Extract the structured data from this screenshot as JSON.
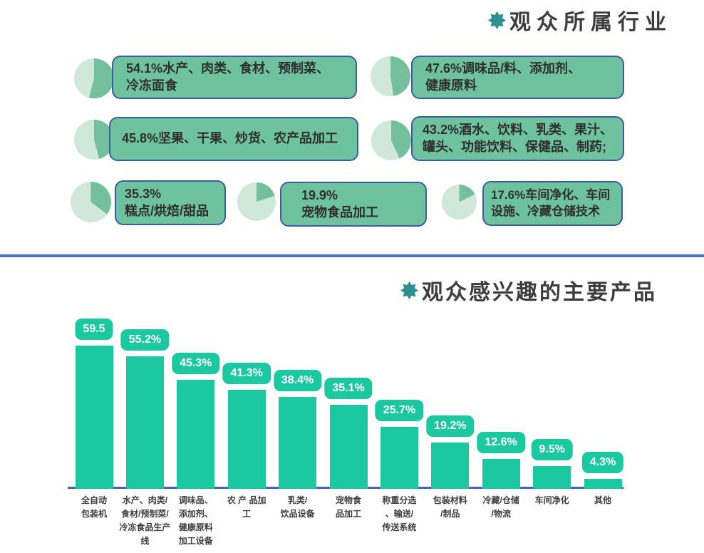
{
  "industries": {
    "title": "观众所属行业",
    "items": [
      {
        "percent": 54.1,
        "text": "54.1%水产、肉类、食材、预制菜、\n冷冻面食"
      },
      {
        "percent": 47.6,
        "text": "47.6%调味品/料、添加剂、\n健康原料"
      },
      {
        "percent": 45.8,
        "text": "45.8%坚果、干果、炒货、农产品加工"
      },
      {
        "percent": 43.2,
        "text": "43.2%酒水、饮料、乳类、果汁、\n罐头、功能饮料、保健品、制药;"
      },
      {
        "percent": 35.3,
        "text": "35.3%\n糕点/烘焙/甜品"
      },
      {
        "percent": 19.9,
        "text": "19.9%\n宠物食品加工"
      },
      {
        "percent": 17.6,
        "text": "17.6%车间净化、车间\n设施、冷藏仓储技术"
      }
    ]
  },
  "products": {
    "title": "观众感兴趣的主要产品"
  },
  "chart_data": {
    "type": "bar",
    "title": "观众感兴趣的主要产品",
    "categories": [
      "全自动包装机",
      "水产、肉类/食材/预制菜/冷冻食品生产线",
      "调味品、添加剂、健康原料加工设备",
      "农产品加工",
      "乳类/饮品设备",
      "宠物食品加工",
      "称重分选、输送/传送系统",
      "包装材料/制品",
      "冷藏/仓储/物流",
      "车间净化",
      "其他"
    ],
    "values": [
      59.5,
      55.2,
      45.3,
      41.3,
      38.4,
      35.1,
      25.7,
      19.2,
      12.6,
      9.5,
      4.3
    ],
    "value_labels": [
      "59.5",
      "55.2%",
      "45.3%",
      "41.3%",
      "38.4%",
      "35.1%",
      "25.7%",
      "19.2%",
      "12.6%",
      "9.5%",
      "4.3%"
    ],
    "tick_labels": [
      "全自动\n包装机",
      "水产、肉类/\n食材/预制菜/\n冷冻食品生产\n线",
      "调味品、\n添加剂、\n健康原料\n加工设备",
      "农 产 品加\n工",
      "乳类/\n饮品设备",
      "宠物食\n品加工",
      "称重分选\n、输送/\n传送系统",
      "包装材料\n/制品",
      "冷藏/仓储\n/物流",
      "车间净化",
      "其他"
    ],
    "xlabel": "",
    "ylabel": "",
    "ylim": [
      0,
      65
    ],
    "grid": false,
    "legend": null,
    "unit": "%"
  },
  "colors": {
    "bar_green": "#1cc8a0",
    "box_green": "#6ec29d",
    "pie_dark": "#74c09c",
    "pie_light": "#cfe8da",
    "border_blue": "#3a5da8",
    "divider_blue": "#4472c4",
    "star_teal": "#2e8f8f",
    "title_text": "#3d3d3d"
  }
}
